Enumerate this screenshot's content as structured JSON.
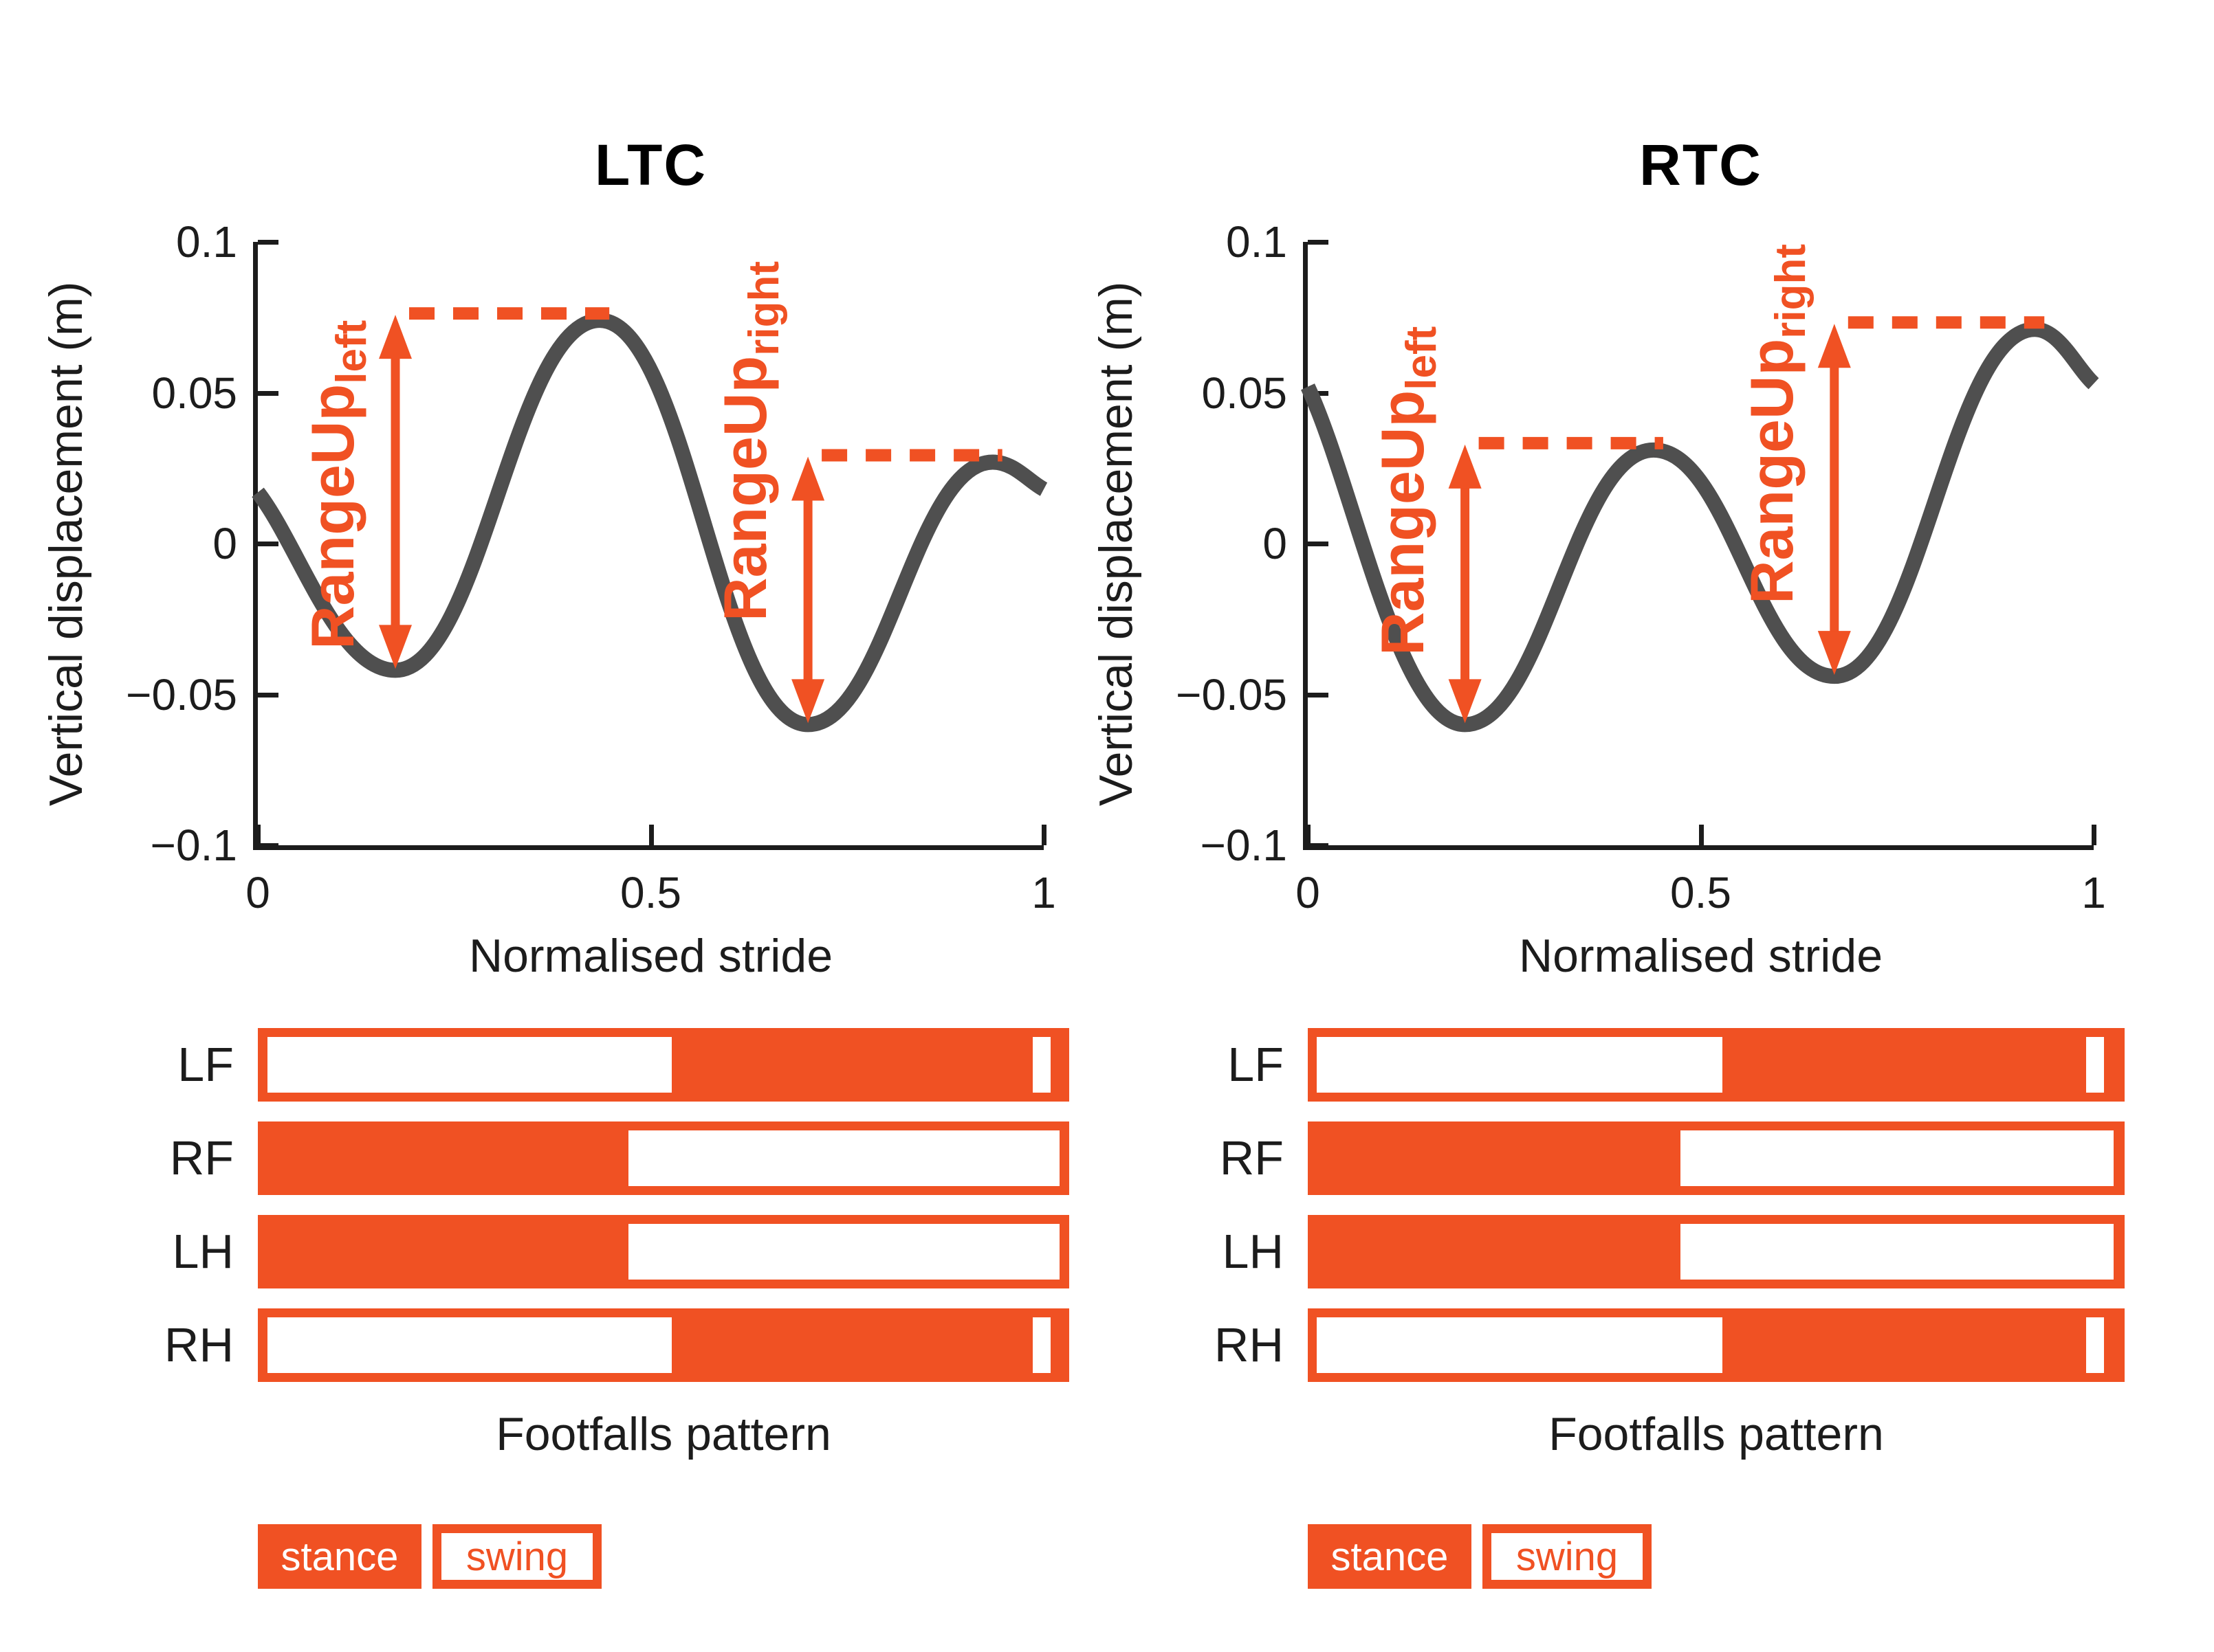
{
  "colors": {
    "accent_orange": "#F05123",
    "curve_gray": "#4F4F4F",
    "axis_dark": "#1C1C1C",
    "background": "#FFFFFF"
  },
  "chart_data": [
    {
      "name": "LTC",
      "type": "line",
      "title": "LTC",
      "xlabel": "Normalised stride",
      "ylabel": "Vertical displacement (m)",
      "xlim": [
        0,
        1
      ],
      "ylim": [
        -0.1,
        0.1
      ],
      "xtick_values": [
        0,
        0.5,
        1
      ],
      "xtick_labels": [
        "0",
        "0.5",
        "1"
      ],
      "ytick_values": [
        0.1,
        0.05,
        0,
        -0.05,
        -0.1
      ],
      "ytick_labels": [
        "0.1",
        "0.05",
        "0",
        "−0.05",
        "−0.1"
      ],
      "x": [
        0,
        0.175,
        0.435,
        0.7,
        0.935,
        1.0
      ],
      "y": [
        0.017,
        -0.042,
        0.074,
        -0.06,
        0.027,
        0.018
      ],
      "annotations": [
        {
          "label": "RangeUp",
          "sub": "left",
          "x": 0.175,
          "y_bottom": -0.042,
          "y_top": 0.074,
          "x_end": 0.435
        },
        {
          "label": "RangeUp",
          "sub": "right",
          "x": 0.7,
          "y_bottom": -0.06,
          "y_top": 0.027,
          "x_end": 0.935
        }
      ],
      "footfalls": {
        "title": "Footfalls pattern",
        "rows": [
          {
            "label": "LF",
            "stance": [
              [
                0.51,
                0.955
              ]
            ],
            "swing": [
              [
                0.012,
                0.51
              ],
              [
                0.955,
                0.977
              ]
            ]
          },
          {
            "label": "RF",
            "stance": [
              [
                0.0,
                0.457
              ]
            ],
            "swing": [
              [
                0.457,
                0.988
              ]
            ]
          },
          {
            "label": "LH",
            "stance": [
              [
                0.0,
                0.457
              ]
            ],
            "swing": [
              [
                0.457,
                0.988
              ]
            ]
          },
          {
            "label": "RH",
            "stance": [
              [
                0.51,
                0.955
              ]
            ],
            "swing": [
              [
                0.012,
                0.51
              ],
              [
                0.955,
                0.977
              ]
            ]
          }
        ],
        "legend": {
          "stance": "stance",
          "swing": "swing"
        }
      }
    },
    {
      "name": "RTC",
      "type": "line",
      "title": "RTC",
      "xlabel": "Normalised stride",
      "ylabel": "Vertical displacement (m)",
      "xlim": [
        0,
        1
      ],
      "ylim": [
        -0.1,
        0.1
      ],
      "xtick_values": [
        0,
        0.5,
        1
      ],
      "xtick_labels": [
        "0",
        "0.5",
        "1"
      ],
      "ytick_values": [
        0.1,
        0.05,
        0,
        -0.05,
        -0.1
      ],
      "ytick_labels": [
        "0.1",
        "0.05",
        "0",
        "−0.05",
        "−0.1"
      ],
      "x": [
        0,
        0.2,
        0.44,
        0.67,
        0.925,
        1.0
      ],
      "y": [
        0.052,
        -0.06,
        0.031,
        -0.044,
        0.071,
        0.053
      ],
      "annotations": [
        {
          "label": "RangeUp",
          "sub": "left",
          "x": 0.2,
          "y_bottom": -0.06,
          "y_top": 0.031,
          "x_end": 0.44
        },
        {
          "label": "RangeUp",
          "sub": "right",
          "x": 0.67,
          "y_bottom": -0.044,
          "y_top": 0.071,
          "x_end": 0.925
        }
      ],
      "footfalls": {
        "title": "Footfalls pattern",
        "rows": [
          {
            "label": "LF",
            "stance": [
              [
                0.508,
                0.953
              ]
            ],
            "swing": [
              [
                0.011,
                0.508
              ],
              [
                0.953,
                0.975
              ]
            ]
          },
          {
            "label": "RF",
            "stance": [
              [
                0.0,
                0.456
              ]
            ],
            "swing": [
              [
                0.456,
                0.986
              ]
            ]
          },
          {
            "label": "LH",
            "stance": [
              [
                0.0,
                0.456
              ]
            ],
            "swing": [
              [
                0.456,
                0.986
              ]
            ]
          },
          {
            "label": "RH",
            "stance": [
              [
                0.508,
                0.953
              ]
            ],
            "swing": [
              [
                0.011,
                0.508
              ],
              [
                0.953,
                0.975
              ]
            ]
          }
        ],
        "legend": {
          "stance": "stance",
          "swing": "swing"
        }
      }
    }
  ]
}
